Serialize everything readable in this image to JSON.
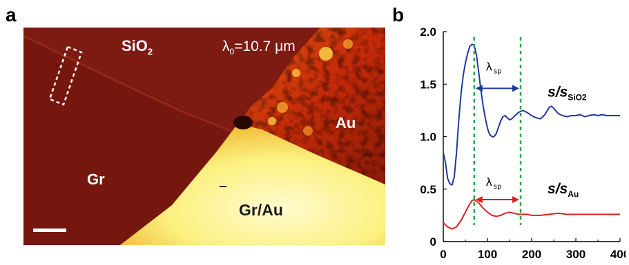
{
  "panel_a": {
    "letter": "a",
    "labels": {
      "sio2": "SiO",
      "sio2_sub": "2",
      "lambda0_sym": "λ",
      "lambda0_sub": "0",
      "lambda0_val": "=10.7 μm",
      "au": "Au",
      "gr": "Gr",
      "grau": "Gr/Au"
    }
  },
  "panel_b": {
    "letter": "b"
  },
  "chart_data": {
    "type": "line",
    "xlim": [
      0,
      400
    ],
    "ylim": [
      0,
      2.0
    ],
    "xticks": [
      "0",
      "100",
      "200",
      "300",
      "400"
    ],
    "yticks": [
      "0",
      "0.5",
      "1.0",
      "1.5",
      "2.0"
    ],
    "grid": false,
    "series": [
      {
        "name": "s/s SiO2",
        "name_main": "s/s",
        "name_sub": "SiO2",
        "color": "#1f3a9a",
        "x": [
          0,
          5,
          10,
          15,
          20,
          25,
          30,
          35,
          40,
          45,
          50,
          55,
          60,
          65,
          70,
          75,
          80,
          85,
          90,
          95,
          100,
          105,
          110,
          115,
          120,
          125,
          130,
          135,
          140,
          145,
          150,
          155,
          160,
          170,
          175,
          180,
          190,
          200,
          210,
          220,
          230,
          240,
          245,
          250,
          260,
          270,
          280,
          290,
          300,
          310,
          320,
          330,
          340,
          350,
          360,
          370,
          380,
          390,
          400
        ],
        "y": [
          0.85,
          0.75,
          0.6,
          0.55,
          0.54,
          0.62,
          0.85,
          1.15,
          1.4,
          1.58,
          1.7,
          1.79,
          1.86,
          1.88,
          1.87,
          1.78,
          1.62,
          1.45,
          1.3,
          1.18,
          1.08,
          1.02,
          1.0,
          1.0,
          1.03,
          1.09,
          1.15,
          1.19,
          1.2,
          1.18,
          1.16,
          1.17,
          1.19,
          1.23,
          1.24,
          1.25,
          1.23,
          1.2,
          1.18,
          1.17,
          1.21,
          1.28,
          1.29,
          1.27,
          1.22,
          1.2,
          1.19,
          1.2,
          1.2,
          1.21,
          1.19,
          1.2,
          1.21,
          1.2,
          1.21,
          1.2,
          1.2,
          1.2,
          1.2
        ]
      },
      {
        "name": "s/s Au",
        "name_main": "s/s",
        "name_sub": "Au",
        "color": "#e02020",
        "x": [
          0,
          10,
          20,
          30,
          40,
          50,
          60,
          65,
          70,
          80,
          90,
          100,
          110,
          120,
          130,
          140,
          150,
          160,
          170,
          180,
          190,
          200,
          220,
          240,
          260,
          280,
          300,
          320,
          340,
          360,
          380,
          400
        ],
        "y": [
          0.18,
          0.14,
          0.12,
          0.14,
          0.2,
          0.28,
          0.36,
          0.39,
          0.4,
          0.37,
          0.32,
          0.28,
          0.25,
          0.24,
          0.25,
          0.27,
          0.28,
          0.27,
          0.26,
          0.26,
          0.26,
          0.25,
          0.25,
          0.26,
          0.27,
          0.26,
          0.26,
          0.26,
          0.26,
          0.26,
          0.26,
          0.26
        ]
      }
    ],
    "annotations": {
      "vlines_x": [
        70,
        175
      ],
      "vline_color": "#22aa44",
      "upper_label": "λ",
      "upper_label_sub": "sp",
      "upper_arrow_y": 1.46,
      "upper_arrow_color": "#1f3a9a",
      "lower_label": "λ",
      "lower_label_sub": "sp",
      "lower_arrow_y": 0.4,
      "lower_arrow_color": "#e02020"
    }
  }
}
